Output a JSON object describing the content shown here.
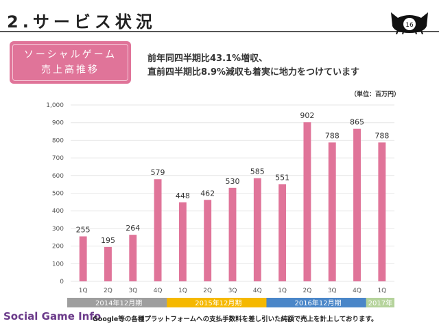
{
  "header": {
    "title": "2.サービス状況",
    "page_number": "16"
  },
  "badge": {
    "line1": "ソーシャルゲーム",
    "line2": "売上高推移"
  },
  "headline": {
    "line1": "前年同四半期比43.1%増収、",
    "line2": "直前四半期比8.9%減収も着実に地力をつけています"
  },
  "unit_label": "（単位：百万円）",
  "chart_data": {
    "type": "bar",
    "categories": [
      "1Q",
      "2Q",
      "3Q",
      "4Q",
      "1Q",
      "2Q",
      "3Q",
      "4Q",
      "1Q",
      "2Q",
      "3Q",
      "4Q",
      "1Q"
    ],
    "values": [
      255,
      195,
      264,
      579,
      448,
      462,
      530,
      585,
      551,
      902,
      788,
      865,
      788
    ],
    "ylim": [
      0,
      1000
    ],
    "yticks": [
      0,
      100,
      200,
      300,
      400,
      500,
      600,
      700,
      800,
      900,
      1000
    ],
    "ytick_labels": [
      "0",
      "100",
      "200",
      "300",
      "400",
      "500",
      "600",
      "700",
      "800",
      "900",
      "1,000"
    ],
    "bar_color": "#e07499",
    "grid": true,
    "groups": [
      {
        "label": "2014年12月期",
        "start": 0,
        "end": 3,
        "color": "#9e9e9e"
      },
      {
        "label": "2015年12月期",
        "start": 4,
        "end": 7,
        "color": "#f5b800"
      },
      {
        "label": "2016年12月期",
        "start": 8,
        "end": 11,
        "color": "#4a86c8"
      },
      {
        "label": "2017年",
        "start": 12,
        "end": 12,
        "color": "#b5d39b"
      }
    ]
  },
  "footnote": "Google等の各種プラットフォームへの支払手数料を差し引いた純額で売上を計上しております。",
  "watermark": "Social Game Info"
}
